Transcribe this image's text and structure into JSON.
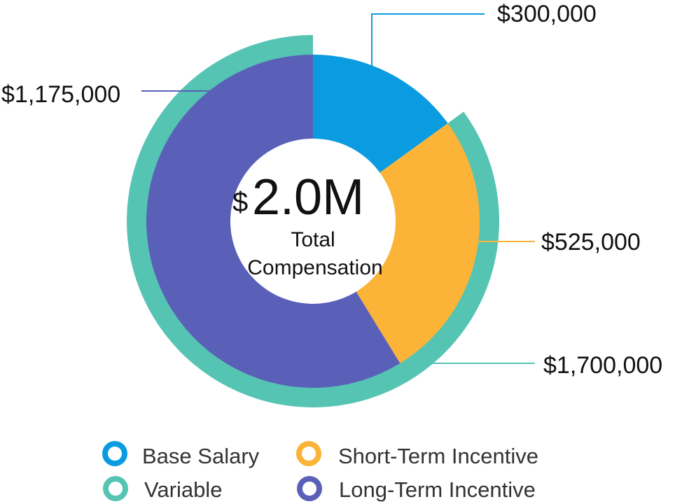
{
  "chart_data": {
    "type": "pie",
    "title": "",
    "center": {
      "prefix": "$",
      "value": "2.0M",
      "caption_line1": "Total",
      "caption_line2": "Compensation"
    },
    "inner_ring": {
      "categories": [
        "Base Salary",
        "Short-Term Incentive",
        "Long-Term Incentive"
      ],
      "values": [
        300000,
        525000,
        1175000
      ],
      "labels": [
        "$300,000",
        "$525,000",
        "$1,175,000"
      ],
      "colors": [
        "#0A9BE0",
        "#FBB437",
        "#5A60B8"
      ]
    },
    "outer_ring": {
      "categories": [
        "Variable"
      ],
      "values": [
        1700000
      ],
      "labels": [
        "$1,700,000"
      ],
      "colors": [
        "#55C4B3"
      ],
      "note": "Variable spans the Short-Term and Long-Term Incentive segments"
    },
    "total": 2000000,
    "legend": [
      {
        "label": "Base Salary",
        "color": "#0A9BE0"
      },
      {
        "label": "Short-Term Incentive",
        "color": "#FBB437"
      },
      {
        "label": "Variable",
        "color": "#55C4B3"
      },
      {
        "label": "Long-Term Incentive",
        "color": "#5A60B8"
      }
    ],
    "legend_position": "bottom"
  }
}
